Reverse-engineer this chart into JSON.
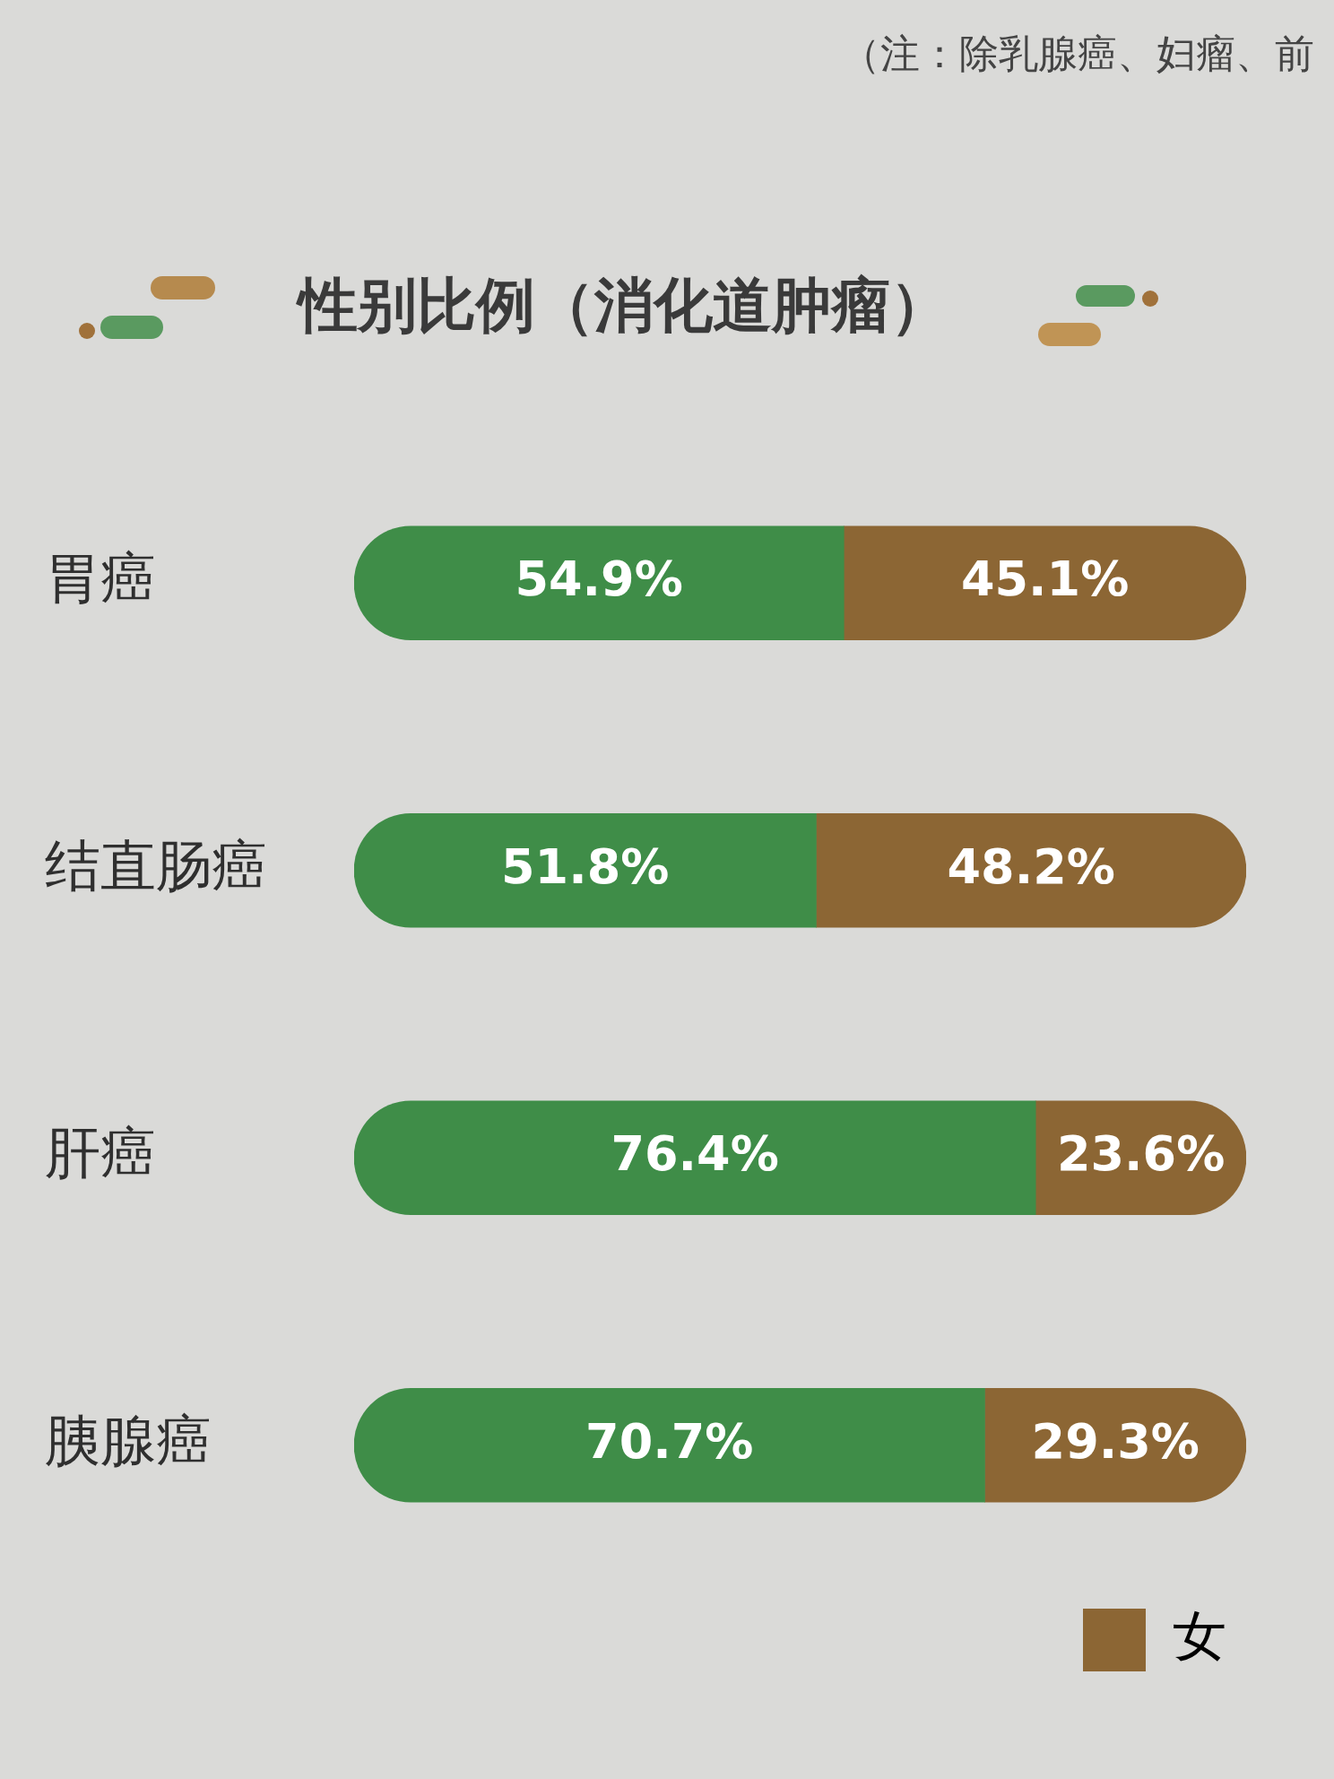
{
  "chart_data": {
    "type": "bar",
    "orientation": "horizontal",
    "stacked": true,
    "title": "性别比例（消化道肿瘤）",
    "annotations": [
      "（注：除乳腺癌、妇瘤、前"
    ],
    "categories": [
      "胃癌",
      "结直肠癌",
      "肝癌",
      "胰腺癌"
    ],
    "series": [
      {
        "color": "#3f8d48",
        "values": [
          54.9,
          51.8,
          76.4,
          70.7
        ],
        "value_labels": [
          "54.9%",
          "51.8%",
          "76.4%",
          "70.7%"
        ]
      },
      {
        "name": "女",
        "color": "#8c6634",
        "values": [
          45.1,
          48.2,
          23.6,
          29.3
        ],
        "value_labels": [
          "45.1%",
          "48.2%",
          "23.6%",
          "29.3%"
        ]
      }
    ],
    "legend": "bottom right",
    "tick_labels": "y"
  }
}
